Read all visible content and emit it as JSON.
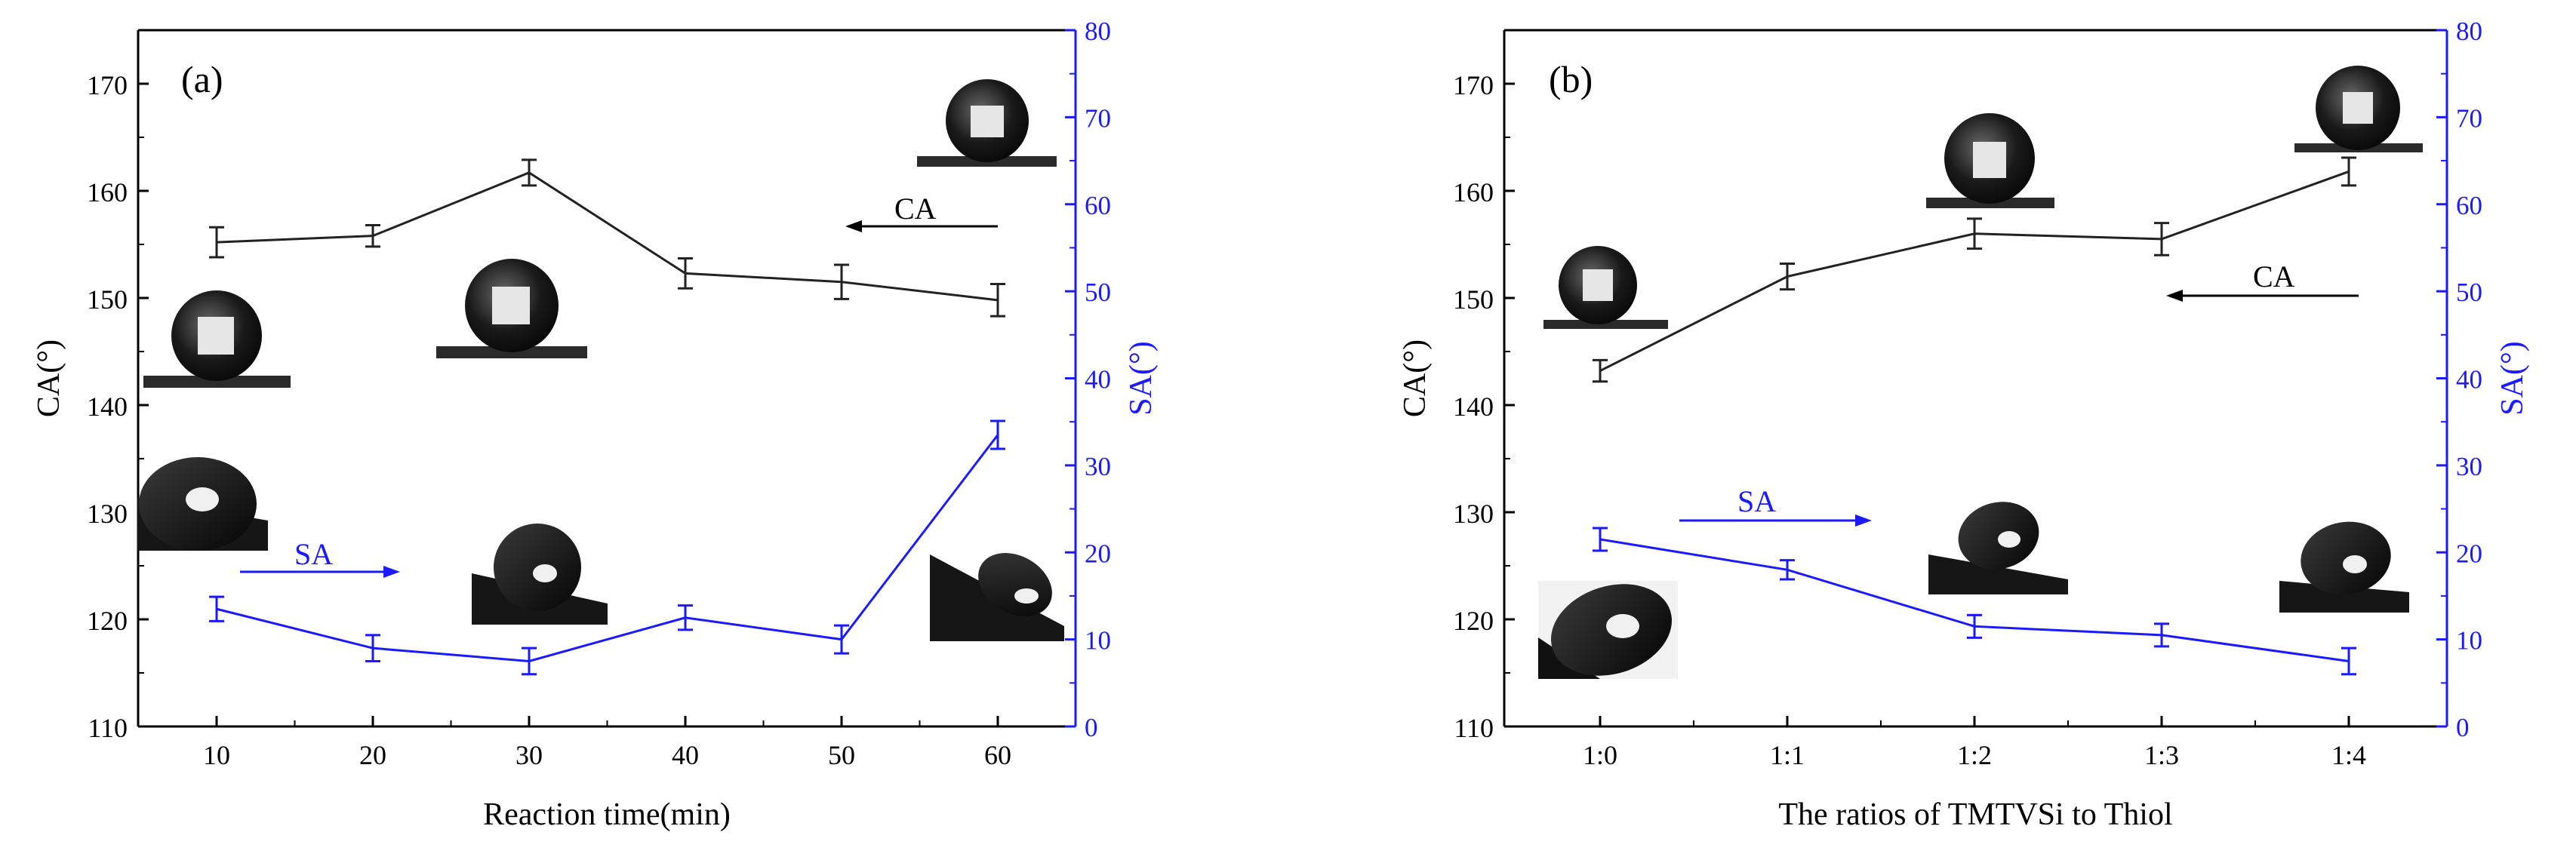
{
  "chart_data": [
    {
      "type": "line",
      "panel_label": "(a)",
      "xlabel": "Reaction time(min)",
      "ylabel_left": "CA(°)",
      "ylabel_right": "SA(°)",
      "categories": [
        "10",
        "20",
        "30",
        "40",
        "50",
        "60"
      ],
      "ylim_left": [
        110,
        175
      ],
      "ylim_right": [
        0,
        80
      ],
      "yticks_left": [
        "110",
        "120",
        "130",
        "140",
        "150",
        "160",
        "170"
      ],
      "yticks_right": [
        "0",
        "10",
        "20",
        "30",
        "40",
        "50",
        "60",
        "70",
        "80"
      ],
      "series": [
        {
          "name": "CA",
          "axis": "left",
          "color": "#222222",
          "values": [
            155.2,
            155.8,
            161.7,
            152.3,
            151.5,
            149.8
          ],
          "errors": [
            1.4,
            1.0,
            1.2,
            1.4,
            1.6,
            1.5
          ]
        },
        {
          "name": "SA",
          "axis": "right",
          "color": "#1a1aff",
          "values": [
            13.5,
            9.0,
            7.5,
            12.5,
            10.0,
            33.5
          ],
          "errors": [
            1.4,
            1.5,
            1.5,
            1.4,
            1.6,
            1.6
          ]
        }
      ],
      "annotations": [
        {
          "text": "CA",
          "arrow": "left"
        },
        {
          "text": "SA",
          "arrow": "right"
        }
      ]
    },
    {
      "type": "line",
      "panel_label": "(b)",
      "xlabel": "The ratios of TMTVSi to Thiol",
      "ylabel_left": "CA(°)",
      "ylabel_right": "SA(°)",
      "categories": [
        "1:0",
        "1:1",
        "1:2",
        "1:3",
        "1:4"
      ],
      "ylim_left": [
        110,
        175
      ],
      "ylim_right": [
        0,
        80
      ],
      "yticks_left": [
        "110",
        "120",
        "130",
        "140",
        "150",
        "160",
        "170"
      ],
      "yticks_right": [
        "0",
        "10",
        "20",
        "30",
        "40",
        "50",
        "60",
        "70",
        "80"
      ],
      "series": [
        {
          "name": "CA",
          "axis": "left",
          "color": "#222222",
          "values": [
            143.2,
            152.0,
            156.0,
            155.5,
            161.8
          ],
          "errors": [
            1.0,
            1.2,
            1.4,
            1.5,
            1.3
          ]
        },
        {
          "name": "SA",
          "axis": "right",
          "color": "#1a1aff",
          "values": [
            21.5,
            18.0,
            11.5,
            10.5,
            7.5
          ],
          "errors": [
            1.3,
            1.1,
            1.3,
            1.3,
            1.5
          ]
        }
      ],
      "annotations": [
        {
          "text": "CA",
          "arrow": "left"
        },
        {
          "text": "SA",
          "arrow": "right"
        }
      ]
    }
  ]
}
